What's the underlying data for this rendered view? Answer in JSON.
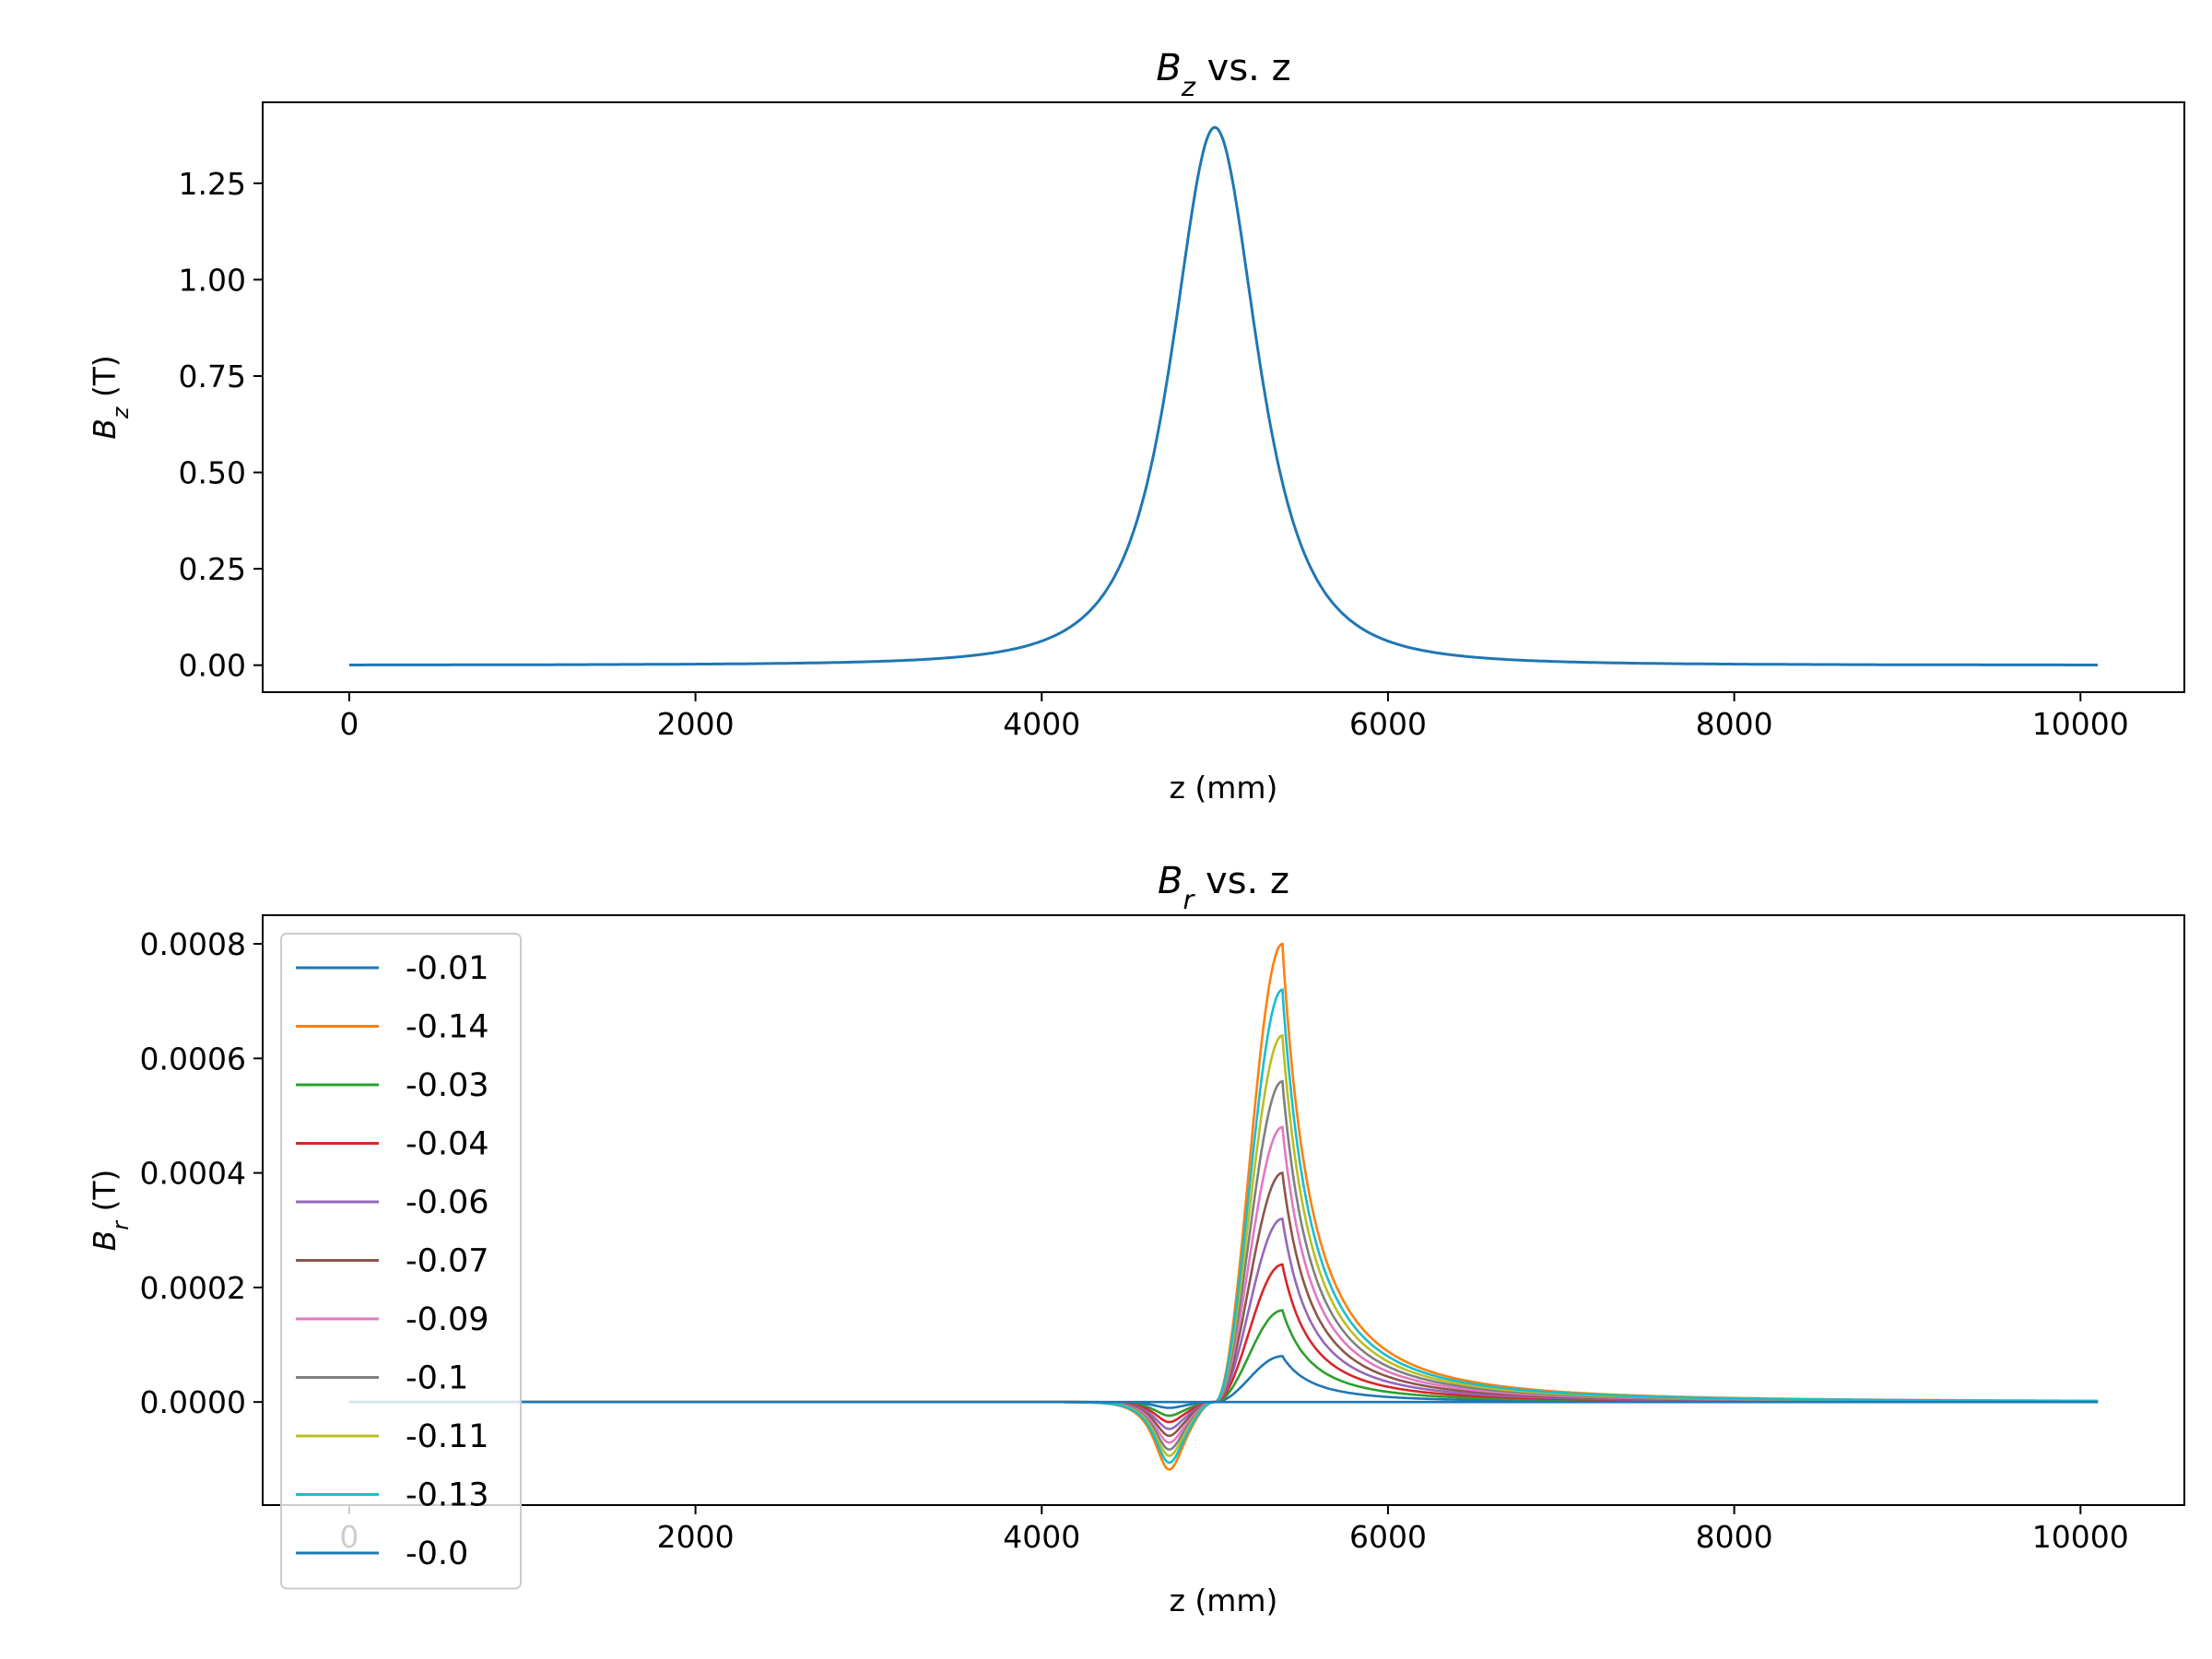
{
  "chart_data": [
    {
      "type": "line",
      "title": {
        "base": "B",
        "sub": "z",
        "rest": " vs. z"
      },
      "xlabel": "z (mm)",
      "ylabel": {
        "base": "B",
        "sub": "z",
        "rest": " (T)"
      },
      "xlim": [
        -500,
        10600
      ],
      "ylim": [
        -0.07,
        1.46
      ],
      "xticks": [
        0,
        2000,
        4000,
        6000,
        8000,
        10000
      ],
      "yticks": [
        "0.00",
        "0.25",
        "0.50",
        "0.75",
        "1.00",
        "1.25"
      ],
      "grid": false,
      "legend": null,
      "series": [
        {
          "color": "#1f77b4",
          "x_range": [
            0,
            10100
          ],
          "center": 5000,
          "peak": 1.395,
          "half_width": 380
        }
      ]
    },
    {
      "type": "line",
      "title": {
        "base": "B",
        "sub": "r",
        "rest": " vs. z"
      },
      "xlabel": "z (mm)",
      "ylabel": {
        "base": "B",
        "sub": "r",
        "rest": " (T)"
      },
      "xlim": [
        -500,
        10600
      ],
      "ylim": [
        -0.00018,
        0.00085
      ],
      "xticks": [
        0,
        2000,
        4000,
        6000,
        8000,
        10000
      ],
      "yticks": [
        "0.0000",
        "0.0002",
        "0.0004",
        "0.0006",
        "0.0008"
      ],
      "grid": false,
      "legend": "upper-left",
      "x_range": [
        0,
        10100
      ],
      "series": [
        {
          "name": "-0.01",
          "color": "#1f77b4",
          "peak": 8e-05,
          "trough": -1.2e-05
        },
        {
          "name": "-0.14",
          "color": "#ff7f0e",
          "peak": 0.0008,
          "trough": -0.000138
        },
        {
          "name": "-0.03",
          "color": "#2ca02c",
          "peak": 0.00016,
          "trough": -2.8e-05
        },
        {
          "name": "-0.04",
          "color": "#d62728",
          "peak": 0.00024,
          "trough": -4.1e-05
        },
        {
          "name": "-0.06",
          "color": "#9467bd",
          "peak": 0.00032,
          "trough": -5.5e-05
        },
        {
          "name": "-0.07",
          "color": "#8c564b",
          "peak": 0.0004,
          "trough": -6.9e-05
        },
        {
          "name": "-0.09",
          "color": "#e377c2",
          "peak": 0.00048,
          "trough": -8.3e-05
        },
        {
          "name": "-0.1",
          "color": "#7f7f7f",
          "peak": 0.00056,
          "trough": -9.7e-05
        },
        {
          "name": "-0.11",
          "color": "#bcbd22",
          "peak": 0.00064,
          "trough": -0.00011
        },
        {
          "name": "-0.13",
          "color": "#17becf",
          "peak": 0.00072,
          "trough": -0.000124
        },
        {
          "name": "-0.0",
          "color": "#1f77b4",
          "peak": 0,
          "trough": 0
        }
      ]
    }
  ]
}
